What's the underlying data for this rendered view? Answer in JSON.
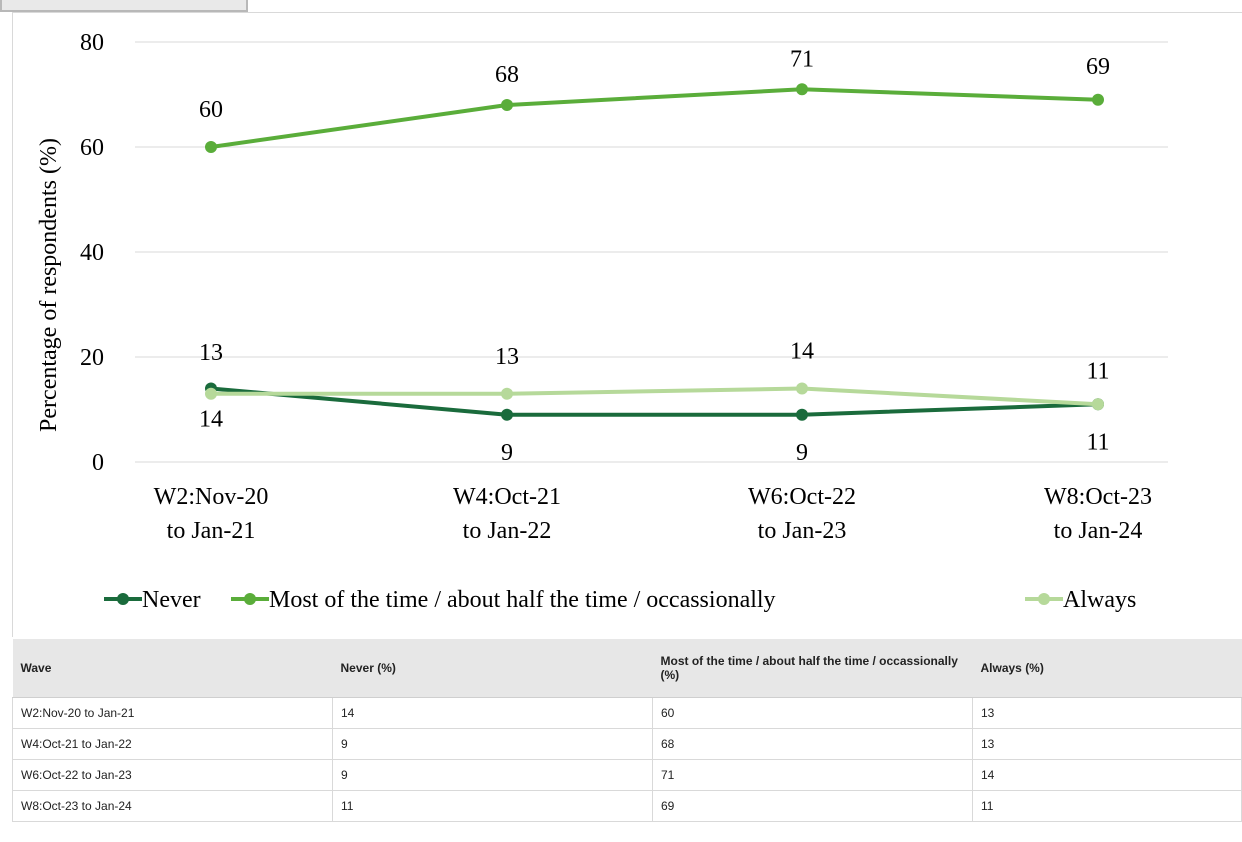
{
  "chart_data": {
    "type": "line",
    "title": "",
    "xlabel": "",
    "ylabel": "Percentage of respondents (%)",
    "ylim": [
      0,
      80
    ],
    "yticks": [
      "0",
      "20",
      "40",
      "60",
      "80"
    ],
    "grid": true,
    "legend_position": "bottom",
    "categories": [
      [
        "W2:Nov-20",
        "to Jan-21"
      ],
      [
        "W4:Oct-21",
        "to Jan-22"
      ],
      [
        "W6:Oct-22",
        "to Jan-23"
      ],
      [
        "W8:Oct-23",
        "to Jan-24"
      ]
    ],
    "series": [
      {
        "name": "Never",
        "values": [
          14,
          9,
          9,
          11
        ],
        "color": "#1a6b3c",
        "labels": [
          "14",
          "9",
          "9",
          "11"
        ]
      },
      {
        "name": "Most of the time / about half the time / occassionally",
        "values": [
          60,
          68,
          71,
          69
        ],
        "color": "#5aad3a",
        "labels": [
          "60",
          "68",
          "71",
          "69"
        ]
      },
      {
        "name": "Always",
        "values": [
          13,
          13,
          14,
          11
        ],
        "color": "#b6d99a",
        "labels": [
          "13",
          "13",
          "14",
          "11"
        ]
      }
    ]
  },
  "table": {
    "headers": [
      "Wave",
      "Never (%)",
      "Most of the time / about half the time / occassionally (%)",
      "Always (%)"
    ],
    "rows": [
      [
        "W2:Nov-20 to Jan-21",
        "14",
        "60",
        "13"
      ],
      [
        "W4:Oct-21 to Jan-22",
        "9",
        "68",
        "13"
      ],
      [
        "W6:Oct-22 to Jan-23",
        "9",
        "71",
        "14"
      ],
      [
        "W8:Oct-23 to Jan-24",
        "11",
        "69",
        "11"
      ]
    ]
  }
}
